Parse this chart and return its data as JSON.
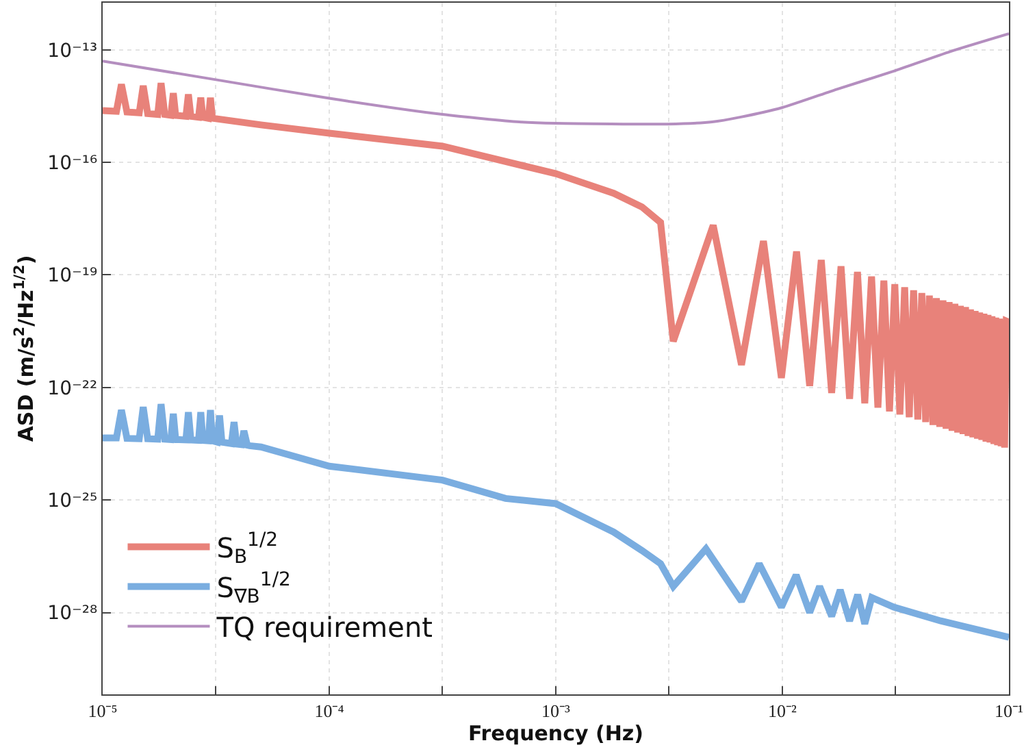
{
  "chart_data": {
    "type": "line",
    "xlabel": "Frequency (Hz)",
    "ylabel": "ASD (m/s$^{2}$/Hz$^{1/2}$)",
    "log": "xy",
    "grid": true,
    "legend": "bottom left",
    "marker": "none",
    "line_style": "solid",
    "xlim": [
      1e-05,
      0.1
    ],
    "ylim": [
      6.6e-31,
      1.8e-12
    ],
    "xticks": [
      {
        "value": 1e-05,
        "label": "10⁻⁵"
      },
      {
        "value": 3.16e-05,
        "label": null
      },
      {
        "value": 0.0001,
        "label": "10⁻⁴"
      },
      {
        "value": 0.000316,
        "label": null
      },
      {
        "value": 0.001,
        "label": "10⁻³"
      },
      {
        "value": 0.00316,
        "label": null
      },
      {
        "value": 0.01,
        "label": "10⁻²"
      },
      {
        "value": 0.0316,
        "label": null
      },
      {
        "value": 0.1,
        "label": "10⁻¹"
      }
    ],
    "yticks": [
      {
        "value": 1e-28,
        "label": "10⁻²⁸"
      },
      {
        "value": 1e-25,
        "label": "10⁻²⁵"
      },
      {
        "value": 1e-22,
        "label": "10⁻²²"
      },
      {
        "value": 1e-19,
        "label": "10⁻¹⁹"
      },
      {
        "value": 1e-16,
        "label": "10⁻¹⁶"
      },
      {
        "value": 1e-13,
        "label": "10⁻¹³"
      }
    ],
    "series": [
      {
        "name": "S$_{B}$$^{1/2}$",
        "color": "#e8827a",
        "x": [
          1e-05,
          1.15e-05,
          1.21e-05,
          1.28e-05,
          1.45e-05,
          1.51e-05,
          1.58e-05,
          1.75e-05,
          1.81e-05,
          1.88e-05,
          2e-05,
          2.05e-05,
          2.1e-05,
          2.33e-05,
          2.39e-05,
          2.45e-05,
          2.65e-05,
          2.71e-05,
          2.77e-05,
          2.93e-05,
          2.99e-05,
          3.05e-05,
          5e-05,
          0.0001,
          0.000316,
          0.001,
          0.0018,
          0.0024,
          0.0029,
          0.0033,
          0.00495,
          0.0066,
          0.00825,
          0.0099,
          0.01155,
          0.0132,
          0.01485,
          0.0165,
          0.01815,
          0.0198,
          0.02145,
          0.0231,
          0.02475,
          0.0264,
          0.02805,
          0.0297,
          0.03135,
          0.033,
          0.03465,
          0.0363,
          0.03795,
          0.0396,
          0.04125,
          0.0429,
          0.04455,
          0.0462,
          0.04785,
          0.0495,
          0.05115,
          0.0528,
          0.05445,
          0.0561,
          0.05775,
          0.0594,
          0.06105,
          0.0627,
          0.06435,
          0.066,
          0.06765,
          0.0693,
          0.07095,
          0.0726,
          0.07425,
          0.0759,
          0.07755,
          0.0792,
          0.08085,
          0.0825,
          0.08415,
          0.0858,
          0.08745,
          0.0891,
          0.09075,
          0.0924,
          0.09405,
          0.0957,
          0.09735,
          0.1
        ],
        "values": [
          2.4e-15,
          2.3e-15,
          1.2e-14,
          2.2e-15,
          2.1e-15,
          1.1e-14,
          2e-15,
          1.9e-15,
          1.3e-14,
          1.9e-15,
          1.8e-15,
          7e-15,
          1.8e-15,
          1.7e-15,
          6.5e-15,
          1.7e-15,
          1.6e-15,
          5.3e-15,
          1.6e-15,
          1.5e-15,
          5.3e-15,
          1.5e-15,
          1e-15,
          6e-16,
          2.7e-16,
          5e-17,
          1.5e-17,
          6.5e-18,
          2.5e-18,
          1.7e-21,
          2.1e-18,
          4e-22,
          8e-19,
          1.8e-22,
          4.2e-19,
          1.1e-22,
          2.5e-19,
          7.1e-23,
          1.7e-19,
          5e-23,
          1.2e-19,
          3.8e-23,
          9.1e-20,
          2.9e-23,
          7.1e-20,
          2.3e-23,
          5.7e-20,
          1.9e-23,
          4.7e-20,
          1.6e-23,
          3.9e-20,
          1.4e-23,
          3.3e-20,
          1.2e-23,
          2.8e-20,
          1e-23,
          2.4e-20,
          8.9e-24,
          2.1e-20,
          7.9e-24,
          1.9e-20,
          7e-24,
          1.7e-20,
          6.3e-24,
          1.5e-20,
          5.7e-24,
          1.4e-20,
          5.1e-24,
          1.2e-20,
          4.7e-24,
          1.1e-20,
          4.3e-24,
          1e-20,
          4e-24,
          9.3e-21,
          3.6e-24,
          8.6e-21,
          3.4e-24,
          7.9e-21,
          3.1e-24,
          7.3e-21,
          2.9e-24,
          6.8e-21,
          2.7e-24,
          6.3e-21,
          2.5e-24,
          5.9e-21,
          5.5e-21
        ]
      },
      {
        "name": "S$_{∇B}$$^{1/2}$",
        "color": "#7aade0",
        "x": [
          1e-05,
          1.15e-05,
          1.21e-05,
          1.28e-05,
          1.45e-05,
          1.51e-05,
          1.58e-05,
          1.75e-05,
          1.81e-05,
          1.88e-05,
          2e-05,
          2.05e-05,
          2.1e-05,
          2.33e-05,
          2.39e-05,
          2.45e-05,
          2.65e-05,
          2.71e-05,
          2.77e-05,
          2.93e-05,
          2.99e-05,
          3.05e-05,
          3.2e-05,
          3.28e-05,
          3.36e-05,
          3.7e-05,
          3.8e-05,
          3.9e-05,
          4.1e-05,
          4.2e-05,
          4.35e-05,
          4.45e-05,
          5e-05,
          0.0001,
          0.000316,
          0.0006,
          0.001,
          0.0018,
          0.0024,
          0.0029,
          0.0033,
          0.0046,
          0.0066,
          0.0079,
          0.0099,
          0.0115,
          0.0132,
          0.0146,
          0.0165,
          0.018,
          0.0198,
          0.0215,
          0.0231,
          0.0248,
          0.031,
          0.05,
          0.1
        ],
        "values": [
          4.5e-24,
          4.5e-24,
          2.5e-23,
          4.4e-24,
          4.3e-24,
          3e-23,
          4.3e-24,
          4.2e-24,
          3.6e-23,
          4.2e-24,
          4.1e-24,
          2e-23,
          4.1e-24,
          4e-24,
          2.2e-23,
          4e-24,
          3.9e-24,
          2.2e-23,
          3.9e-24,
          3.8e-24,
          2.5e-23,
          3.8e-24,
          3.5e-24,
          1.8e-23,
          3.5e-24,
          3.2e-24,
          1.2e-23,
          3.1e-24,
          3e-24,
          7e-24,
          2.9e-24,
          2.8e-24,
          2.6e-24,
          8e-25,
          3.4e-25,
          1.1e-25,
          8e-26,
          1.4e-26,
          4.5e-27,
          2e-27,
          5e-28,
          5e-27,
          2e-28,
          2e-27,
          1.4e-28,
          1e-27,
          1e-28,
          5e-28,
          8e-29,
          4e-28,
          6e-29,
          3e-28,
          5e-29,
          2.5e-28,
          1.4e-28,
          6e-29,
          2.2e-29
        ]
      },
      {
        "name": "TQ requirement",
        "color": "#b48ebf",
        "x": [
          1e-05,
          3.16e-05,
          0.0001,
          0.000316,
          0.00069,
          0.001,
          0.0031,
          0.0049,
          0.0065,
          0.01,
          0.0175,
          0.031,
          0.055,
          0.1
        ],
        "values": [
          5e-14,
          1.6e-14,
          5.1e-15,
          1.9e-15,
          1.2e-15,
          1.1e-15,
          1.05e-15,
          1.2e-15,
          1.6e-15,
          2.9e-15,
          9e-15,
          2.7e-14,
          9e-14,
          2.7e-13
        ]
      }
    ]
  }
}
